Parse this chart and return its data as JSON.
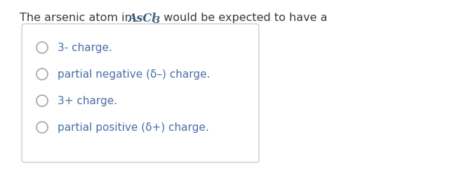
{
  "background_color": "#ffffff",
  "text_color_normal": "#4a6fa5",
  "text_color_dark": "#3d5a80",
  "option_text_color": "#4a6fa5",
  "title_plain_color": "#3a3a3a",
  "circle_color": "#aaaaaa",
  "box_edge_color": "#cccccc",
  "title_fontsize": 11.5,
  "option_fontsize": 11.0,
  "figure_width": 6.74,
  "figure_height": 2.43,
  "options": [
    "3- charge.",
    "partial negative (δ–) charge.",
    "3+ charge.",
    "partial positive (δ+) charge."
  ]
}
